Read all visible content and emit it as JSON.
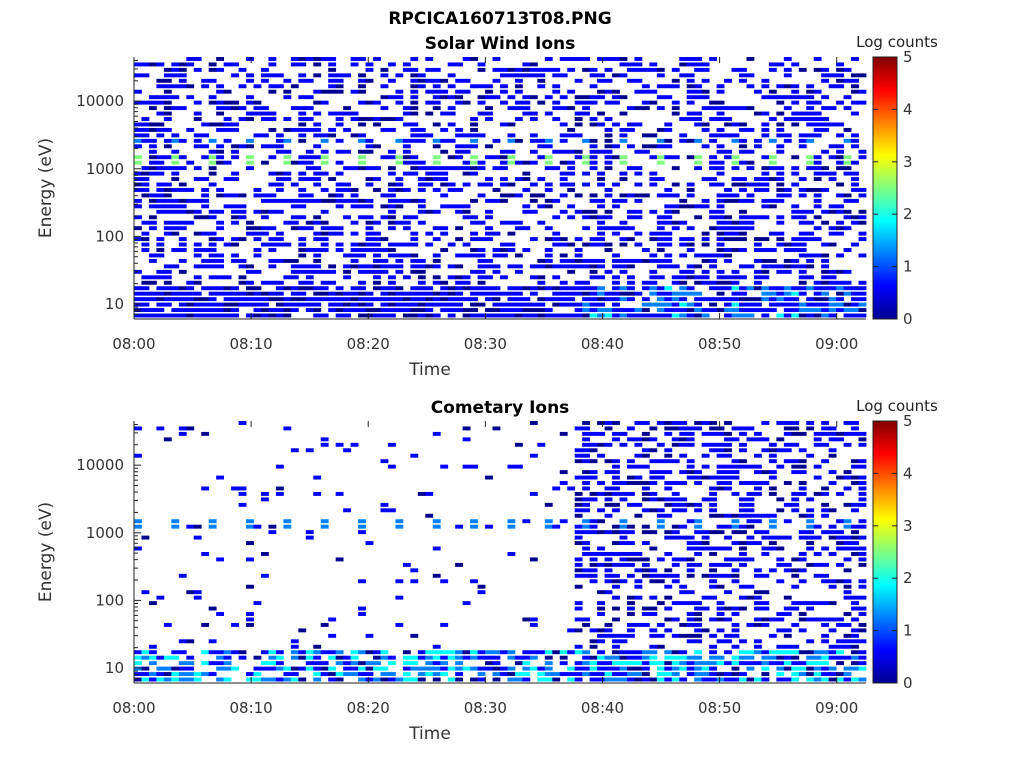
{
  "figure_title": "RPCICA160713T08.PNG",
  "colormap": [
    "#00008f",
    "#0000ff",
    "#0080ff",
    "#00ffff",
    "#80ff80",
    "#ffff00",
    "#ff8000",
    "#ff0000",
    "#800000"
  ],
  "chart_data": [
    {
      "type": "heatmap",
      "title": "Solar Wind Ions",
      "xlabel": "Time",
      "ylabel": "Energy (eV)",
      "x_ticks": [
        "08:00",
        "08:10",
        "08:20",
        "08:30",
        "08:40",
        "08:50",
        "09:00"
      ],
      "x_range_minutes": [
        0,
        62.5
      ],
      "y_scale": "log",
      "y_ticks": [
        10,
        100,
        1000,
        10000
      ],
      "y_tick_labels": [
        "10",
        "100",
        "1000",
        "10000"
      ],
      "y_range": [
        6,
        45000
      ],
      "colorbar": {
        "label": "Log counts",
        "range": [
          0,
          5
        ],
        "ticks": [
          "0",
          "1",
          "2",
          "3",
          "4",
          "5"
        ]
      },
      "features": [
        {
          "energy": 1300,
          "period_minutes": 3.2,
          "value": 2.2
        },
        {
          "energy": 2500,
          "period_minutes": 3.2,
          "value": 1.1
        },
        {
          "energy_range": [
            6,
            20
          ],
          "value_range": [
            0.5,
            1.7
          ],
          "note_start_minutes": 38
        }
      ],
      "background_fill_fraction": 0.45
    },
    {
      "type": "heatmap",
      "title": "Cometary Ions",
      "xlabel": "Time",
      "ylabel": "Energy (eV)",
      "x_ticks": [
        "08:00",
        "08:10",
        "08:20",
        "08:30",
        "08:40",
        "08:50",
        "09:00"
      ],
      "x_range_minutes": [
        0,
        62.5
      ],
      "y_scale": "log",
      "y_ticks": [
        10,
        100,
        1000,
        10000
      ],
      "y_tick_labels": [
        "10",
        "100",
        "1000",
        "10000"
      ],
      "y_range": [
        6,
        45000
      ],
      "colorbar": {
        "label": "Log counts",
        "range": [
          0,
          5
        ],
        "ticks": [
          "0",
          "1",
          "2",
          "3",
          "4",
          "5"
        ]
      },
      "features": [
        {
          "energy": 1300,
          "period_minutes": 3.2,
          "value": 1.0
        },
        {
          "energy_range": [
            6,
            20
          ],
          "value_range": [
            1.2,
            1.9
          ]
        },
        {
          "dense_start_minutes": 37.5,
          "dense_fill_fraction": 0.45
        }
      ],
      "background_fill_fraction": 0.06
    }
  ]
}
